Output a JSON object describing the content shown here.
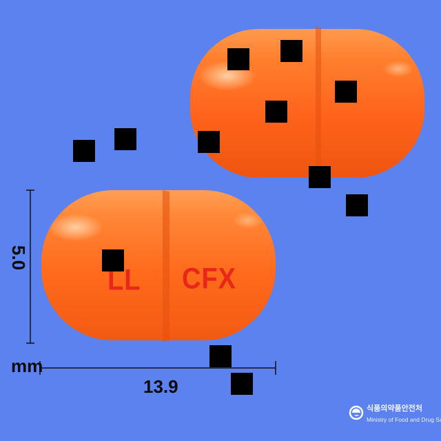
{
  "dimensions": {
    "height_value": "5.0",
    "unit": "mm",
    "length_value": "13.9"
  },
  "capsule_front": {
    "imprint_left": "LL",
    "imprint_right": "CFX"
  },
  "colors": {
    "background": "#5b82ee",
    "capsule_orange": "#ff6a1c",
    "imprint_red": "#e8261a"
  },
  "logo": {
    "korean_name": "식품의약품안전처",
    "english_name": "Ministry of Food and Drug Safety"
  },
  "icons": [
    "mfds-emblem-icon"
  ]
}
